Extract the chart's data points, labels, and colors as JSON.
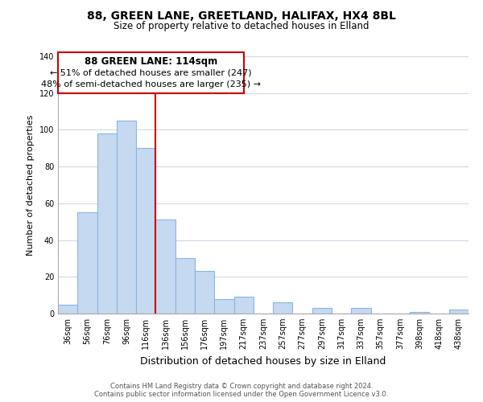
{
  "title": "88, GREEN LANE, GREETLAND, HALIFAX, HX4 8BL",
  "subtitle": "Size of property relative to detached houses in Elland",
  "xlabel": "Distribution of detached houses by size in Elland",
  "ylabel": "Number of detached properties",
  "bar_color": "#c5d9f1",
  "bar_edge_color": "#8db4e2",
  "categories": [
    "36sqm",
    "56sqm",
    "76sqm",
    "96sqm",
    "116sqm",
    "136sqm",
    "156sqm",
    "176sqm",
    "197sqm",
    "217sqm",
    "237sqm",
    "257sqm",
    "277sqm",
    "297sqm",
    "317sqm",
    "337sqm",
    "357sqm",
    "377sqm",
    "398sqm",
    "418sqm",
    "438sqm"
  ],
  "values": [
    5,
    55,
    98,
    105,
    90,
    51,
    30,
    23,
    8,
    9,
    0,
    6,
    0,
    3,
    0,
    3,
    0,
    0,
    1,
    0,
    2
  ],
  "ylim": [
    0,
    140
  ],
  "yticks": [
    0,
    20,
    40,
    60,
    80,
    100,
    120,
    140
  ],
  "property_line_x": 4.5,
  "annotation_title": "88 GREEN LANE: 114sqm",
  "annotation_line1": "← 51% of detached houses are smaller (247)",
  "annotation_line2": "48% of semi-detached houses are larger (235) →",
  "annotation_box_color": "#ffffff",
  "annotation_border_color": "#cc0000",
  "line_color": "#cc0000",
  "footer_line1": "Contains HM Land Registry data © Crown copyright and database right 2024.",
  "footer_line2": "Contains public sector information licensed under the Open Government Licence v3.0.",
  "background_color": "#ffffff",
  "grid_color": "#d0d8e8"
}
